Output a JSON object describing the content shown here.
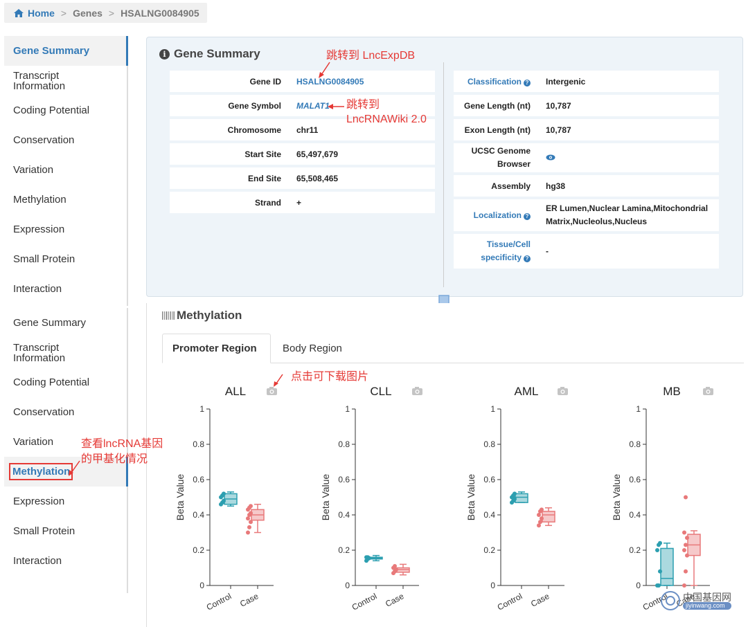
{
  "breadcrumb": {
    "home": "Home",
    "genes": "Genes",
    "current": "HSALNG0084905"
  },
  "sidebar_top": {
    "items": [
      "Gene Summary",
      "Transcript Information",
      "Coding Potential",
      "Conservation",
      "Variation",
      "Methylation",
      "Expression",
      "Small Protein",
      "Interaction"
    ],
    "active": "Gene Summary"
  },
  "sidebar_bottom": {
    "items": [
      "Gene Summary",
      "Transcript Information",
      "Coding Potential",
      "Conservation",
      "Variation",
      "Methylation",
      "Expression",
      "Small Protein",
      "Interaction"
    ],
    "active": "Methylation"
  },
  "summary": {
    "title": "Gene Summary",
    "left": [
      {
        "key": "Gene ID",
        "value": "HSALNG0084905"
      },
      {
        "key": "Gene Symbol",
        "value": "MALAT1"
      },
      {
        "key": "Chromosome",
        "value": "chr11"
      },
      {
        "key": "Start Site",
        "value": "65,497,679"
      },
      {
        "key": "End Site",
        "value": "65,508,465"
      },
      {
        "key": "Strand",
        "value": "+"
      }
    ],
    "right": [
      {
        "key": "Classification",
        "value": "Intergenic"
      },
      {
        "key": "Gene Length (nt)",
        "value": "10,787"
      },
      {
        "key": "Exon Length (nt)",
        "value": "10,787"
      },
      {
        "key": "UCSC Genome Browser",
        "value": ""
      },
      {
        "key": "Assembly",
        "value": "hg38"
      },
      {
        "key": "Localization",
        "value": "ER Lumen,Nuclear Lamina,Mitochondrial Matrix,Nucleolus,Nucleus"
      },
      {
        "key": "Tissue/Cell specificity",
        "value": "-"
      }
    ]
  },
  "annotations": {
    "lncexpdb": "跳转到 LncExpDB",
    "lncrnawiki_1": "跳转到",
    "lncrnawiki_2": "LncRNAWiki 2.0",
    "download": "点击可下载图片",
    "methylation_1": "查看lncRNA基因",
    "methylation_2": "的甲基化情况"
  },
  "methylation": {
    "title": "Methylation",
    "tabs": [
      "Promoter Region",
      "Body Region"
    ],
    "active_tab": "Promoter Region"
  },
  "chart_data": [
    {
      "type": "box",
      "title": "ALL",
      "ylabel": "Beta Value",
      "categories": [
        "Control",
        "Case"
      ],
      "ylim": [
        0,
        1
      ],
      "yticks": [
        "0",
        "0.2",
        "0.4",
        "0.6",
        "0.8",
        "1"
      ],
      "boxes": [
        {
          "min": 0.45,
          "q1": 0.46,
          "median": 0.49,
          "q3": 0.52,
          "max": 0.53
        },
        {
          "min": 0.3,
          "q1": 0.37,
          "median": 0.4,
          "q3": 0.43,
          "max": 0.46
        }
      ],
      "points": [
        [
          0.46,
          0.47,
          0.48,
          0.5,
          0.51,
          0.52
        ],
        [
          0.3,
          0.33,
          0.36,
          0.38,
          0.4,
          0.41,
          0.43,
          0.44,
          0.45
        ]
      ]
    },
    {
      "type": "box",
      "title": "CLL",
      "ylabel": "Beta Value",
      "categories": [
        "Control",
        "Case"
      ],
      "ylim": [
        0,
        1
      ],
      "yticks": [
        "0",
        "0.2",
        "0.4",
        "0.6",
        "0.8",
        "1"
      ],
      "boxes": [
        {
          "min": 0.14,
          "q1": 0.15,
          "median": 0.155,
          "q3": 0.16,
          "max": 0.17
        },
        {
          "min": 0.06,
          "q1": 0.075,
          "median": 0.09,
          "q3": 0.1,
          "max": 0.12
        }
      ],
      "points": [
        [
          0.14,
          0.15,
          0.155,
          0.16,
          0.16
        ],
        [
          0.07,
          0.08,
          0.09,
          0.1,
          0.11
        ]
      ]
    },
    {
      "type": "box",
      "title": "AML",
      "ylabel": "Beta Value",
      "categories": [
        "Control",
        "Case"
      ],
      "ylim": [
        0,
        1
      ],
      "yticks": [
        "0",
        "0.2",
        "0.4",
        "0.6",
        "0.8",
        "1"
      ],
      "boxes": [
        {
          "min": 0.47,
          "q1": 0.47,
          "median": 0.5,
          "q3": 0.52,
          "max": 0.53
        },
        {
          "min": 0.34,
          "q1": 0.36,
          "median": 0.4,
          "q3": 0.42,
          "max": 0.44
        }
      ],
      "points": [
        [
          0.47,
          0.48,
          0.49,
          0.5,
          0.51,
          0.52
        ],
        [
          0.34,
          0.36,
          0.38,
          0.4,
          0.42,
          0.43
        ]
      ]
    },
    {
      "type": "box",
      "title": "MB",
      "ylabel": "Beta Value",
      "categories": [
        "Control",
        "Case"
      ],
      "ylim": [
        0,
        1
      ],
      "yticks": [
        "0",
        "0.2",
        "0.4",
        "0.6",
        "0.8",
        "1"
      ],
      "boxes": [
        {
          "min": 0.0,
          "q1": 0.0,
          "median": 0.04,
          "q3": 0.21,
          "max": 0.24
        },
        {
          "min": 0.0,
          "q1": 0.17,
          "median": 0.23,
          "q3": 0.29,
          "max": 0.31
        }
      ],
      "points": [
        [
          0.0,
          0.0,
          0.08,
          0.2,
          0.23,
          0.24
        ],
        [
          0.0,
          0.08,
          0.17,
          0.2,
          0.23,
          0.27,
          0.3,
          0.5
        ]
      ]
    }
  ],
  "colors": {
    "control": "#2c9fb0",
    "case": "#e8797a",
    "accent": "#337ab7",
    "annotation": "#e53935"
  },
  "watermark": {
    "cn": "中国基因网",
    "url": "jiyinwang.com"
  }
}
